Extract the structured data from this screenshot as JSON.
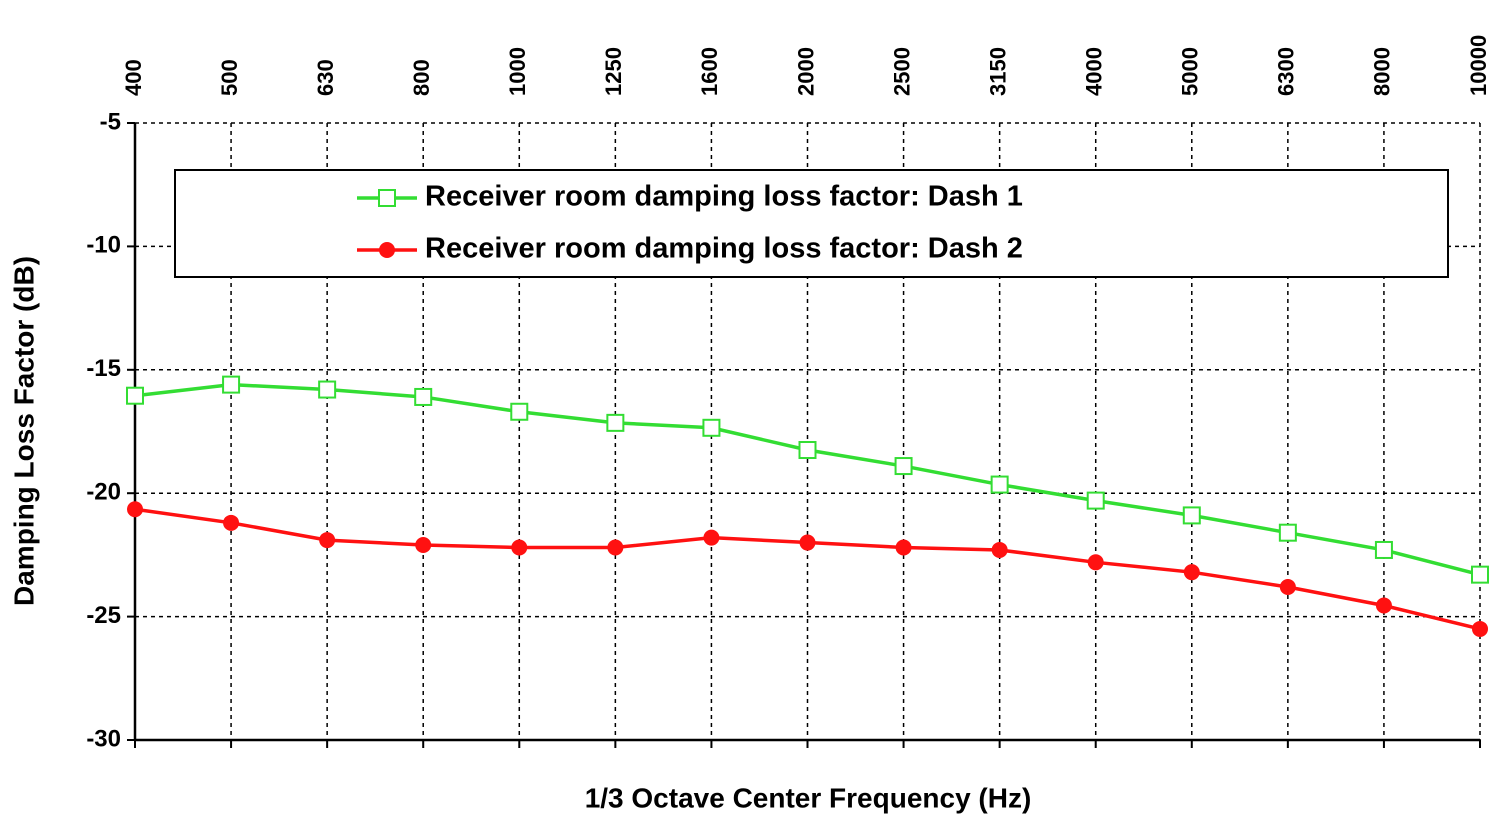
{
  "chart_data": {
    "type": "line",
    "ylabel": "Damping Loss Factor (dB)",
    "xlabel": "1/3 Octave Center Frequency (Hz)",
    "categories": [
      "400",
      "500",
      "630",
      "800",
      "1000",
      "1250",
      "1600",
      "2000",
      "2500",
      "3150",
      "4000",
      "5000",
      "6300",
      "8000",
      "10000"
    ],
    "series": [
      {
        "name": "Receiver room damping loss factor: Dash 1",
        "color": "#33dd33",
        "marker": "open-square",
        "values": [
          -16.05,
          -15.6,
          -15.8,
          -16.1,
          -16.7,
          -17.15,
          -17.35,
          -18.25,
          -18.9,
          -19.65,
          -20.3,
          -20.9,
          -21.6,
          -22.3,
          -23.3
        ]
      },
      {
        "name": "Receiver room damping loss factor: Dash 2",
        "color": "#ff1111",
        "marker": "filled-circle",
        "values": [
          -20.65,
          -21.2,
          -21.9,
          -22.1,
          -22.2,
          -22.2,
          -21.8,
          -22.0,
          -22.2,
          -22.3,
          -22.8,
          -23.2,
          -23.8,
          -24.55,
          -25.5
        ]
      }
    ],
    "ylim": [
      -30,
      -5
    ],
    "yticks": [
      -30,
      -25,
      -20,
      -15,
      -10,
      -5
    ],
    "grid": true
  }
}
